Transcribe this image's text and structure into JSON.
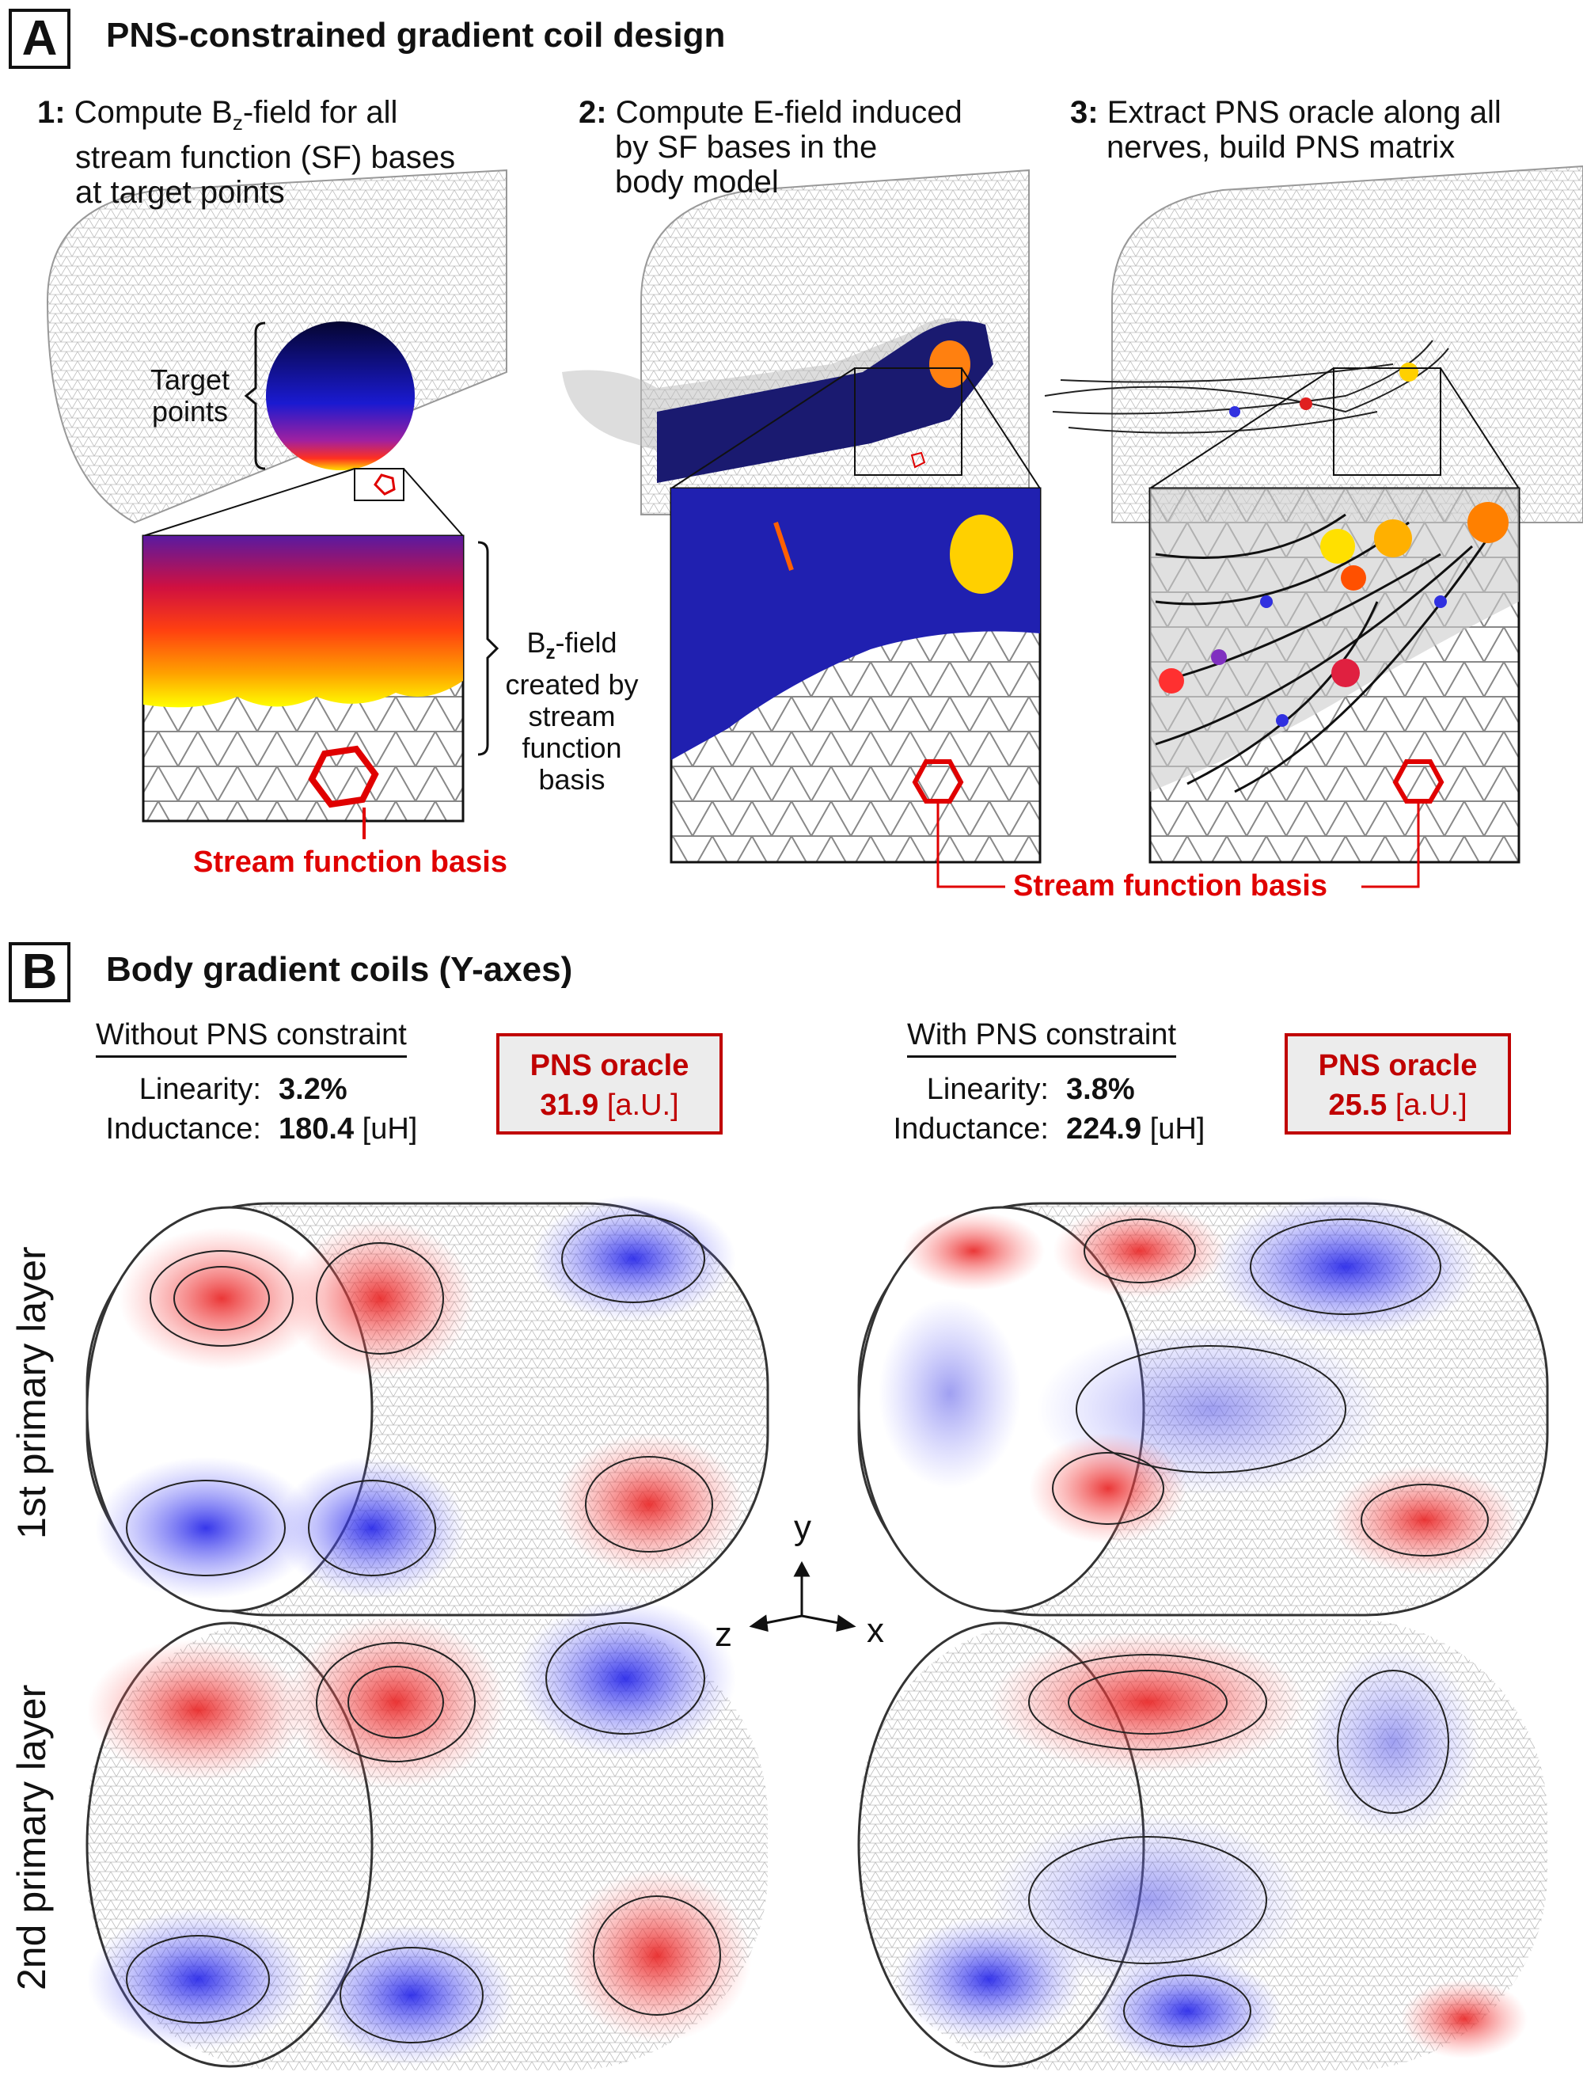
{
  "panel_a": {
    "letter": "A",
    "title": "PNS-constrained gradient coil design",
    "steps": [
      {
        "num": "1:",
        "lines": [
          "Compute B",
          "z",
          "-field for all",
          "stream function (SF) bases",
          "at target points"
        ]
      },
      {
        "num": "2:",
        "lines": [
          "Compute E-field induced",
          "by SF bases in the",
          "body model"
        ]
      },
      {
        "num": "3:",
        "lines": [
          "Extract PNS oracle along all",
          "nerves, build PNS matrix"
        ]
      }
    ],
    "target_points_label": [
      "Target",
      "points"
    ],
    "bz_label": [
      "B",
      "z",
      "-field",
      "created by",
      "stream",
      "function",
      "basis"
    ],
    "sf_basis_label_1": "Stream function basis",
    "sf_basis_label_2": "Stream function basis"
  },
  "panel_b": {
    "letter": "B",
    "title": "Body gradient coils (Y-axes)",
    "left": {
      "header": "Without PNS constraint",
      "linearity_label": "Linearity:",
      "linearity_value": "3.2%",
      "inductance_label": "Inductance:",
      "inductance_value": "180.4",
      "inductance_unit": "[uH]",
      "oracle_title": "PNS oracle",
      "oracle_value": "31.9",
      "oracle_unit": "[a.U.]"
    },
    "right": {
      "header": "With PNS constraint",
      "linearity_label": "Linearity:",
      "linearity_value": "3.8%",
      "inductance_label": "Inductance:",
      "inductance_value": "224.9",
      "inductance_unit": "[uH]",
      "oracle_title": "PNS oracle",
      "oracle_value": "25.5",
      "oracle_unit": "[a.U.]"
    },
    "row_labels": [
      "1st primary layer",
      "2nd primary layer"
    ],
    "axes": {
      "y": "y",
      "z": "z",
      "x": "x"
    }
  },
  "colors": {
    "accent_red": "#e00000",
    "box_red": "#c00000",
    "coil_red": "#e83a3a",
    "coil_blue": "#3a3ae8"
  }
}
